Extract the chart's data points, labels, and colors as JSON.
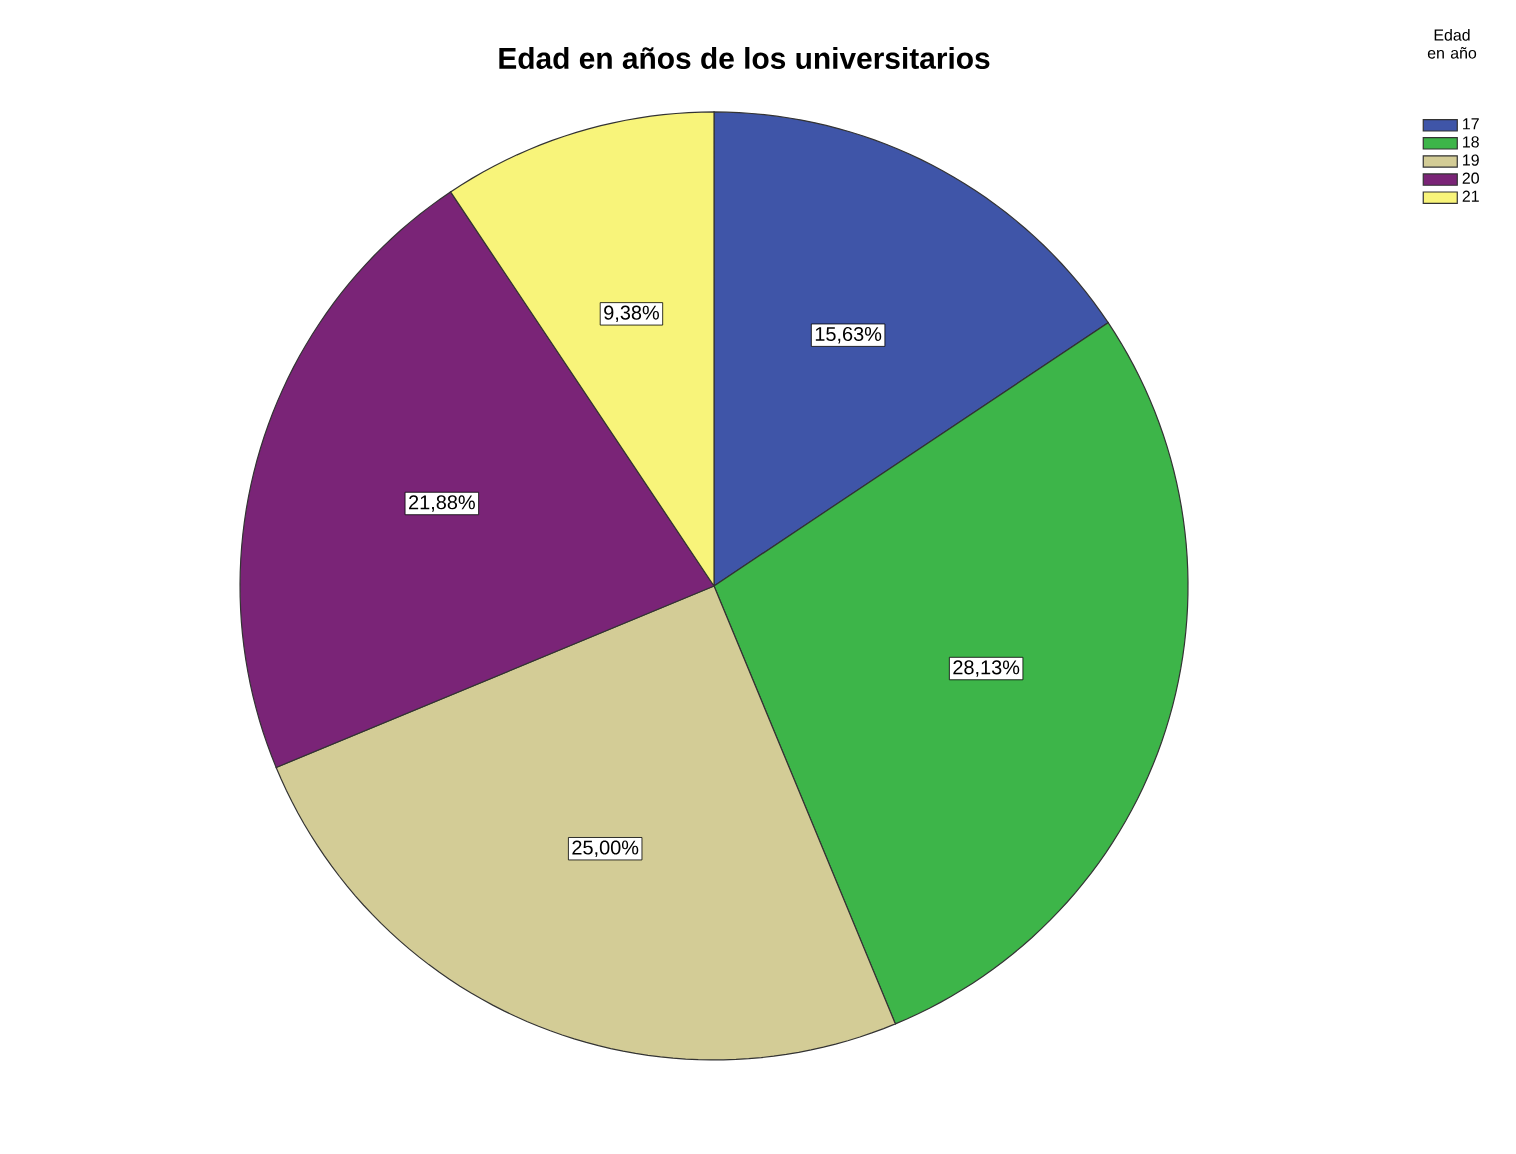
{
  "chart_data": {
    "type": "pie",
    "title": "Edad en años de los universitarios",
    "legend_title": "Edad en año",
    "categories": [
      "17",
      "18",
      "19",
      "20",
      "21"
    ],
    "values": [
      15.63,
      28.13,
      25.0,
      21.88,
      9.38
    ],
    "value_labels": [
      "15,63%",
      "28,13%",
      "25,00%",
      "21,88%",
      "9,38%"
    ],
    "colors": [
      "#3f55a8",
      "#3db549",
      "#d3cc96",
      "#7a2477",
      "#f8f47a"
    ],
    "legend": "top right"
  }
}
